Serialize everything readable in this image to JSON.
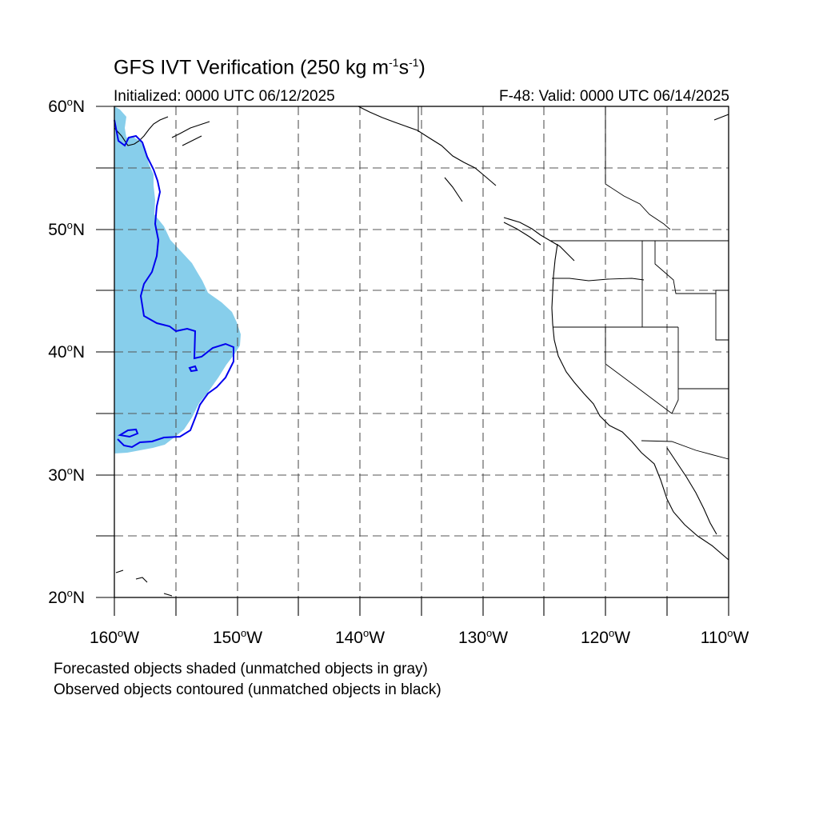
{
  "header": {
    "title_main": "GFS IVT Verification (250 kg m",
    "title_exp1": "-1",
    "title_mid": "s",
    "title_exp2": "-1",
    "title_end": ")",
    "initialized": "Initialized: 0000 UTC 06/12/2025",
    "valid": "F-48: Valid: 0000 UTC 06/14/2025"
  },
  "axes": {
    "lat_labels": [
      "60",
      "50",
      "40",
      "30",
      "20"
    ],
    "lat_suffix": "N",
    "lon_labels": [
      "160",
      "150",
      "140",
      "130",
      "120",
      "110"
    ],
    "lon_suffix": "W",
    "deg_symbol": "o"
  },
  "legend": {
    "line1": "Forecasted objects shaded (unmatched objects in gray)",
    "line2": "Observed objects contoured (unmatched objects in black)"
  },
  "map": {
    "lat_range": [
      20,
      60
    ],
    "lon_range": [
      -160,
      -110
    ],
    "grid_spacing_deg": 5,
    "grid_style": "dashed",
    "colors": {
      "forecast_fill": "#87CEEB",
      "observed_contour": "#0000EE",
      "coastline": "#000000",
      "gridline": "#555555"
    }
  }
}
